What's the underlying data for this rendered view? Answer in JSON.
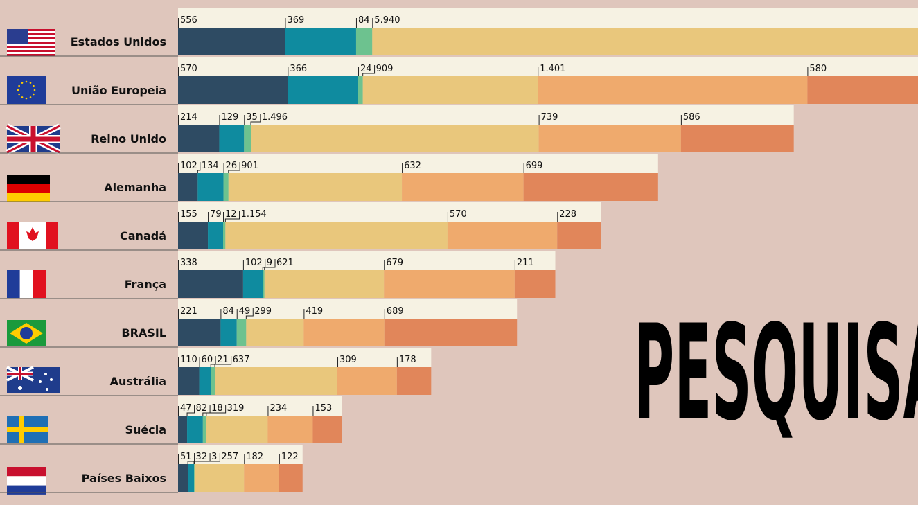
{
  "chart_data": {
    "type": "bar",
    "orientation": "horizontal",
    "stacked": true,
    "annotation": "PESQUISA",
    "categories": [
      "Estados Unidos",
      "União Europeia",
      "Reino Unido",
      "Alemanha",
      "Canadá",
      "França",
      "BRASIL",
      "Austrália",
      "Suécia",
      "Países Baixos"
    ],
    "series": [
      {
        "color": "#2e4b63",
        "values": [
          556,
          570,
          214,
          102,
          155,
          338,
          221,
          110,
          47,
          51
        ]
      },
      {
        "color": "#0f8b9f",
        "values": [
          369,
          366,
          129,
          134,
          79,
          102,
          84,
          60,
          82,
          32
        ]
      },
      {
        "color": "#6dc28f",
        "values": [
          84,
          24,
          35,
          26,
          12,
          9,
          49,
          21,
          18,
          3
        ]
      },
      {
        "color": "#e9c77c",
        "values": [
          5940,
          909,
          1496,
          901,
          1154,
          621,
          299,
          637,
          319,
          257
        ],
        "value_labels": [
          "5.940",
          "909",
          "1.496",
          "901",
          "1.154",
          "621",
          "299",
          "637",
          "319",
          "257"
        ]
      },
      {
        "color": "#efaa6d",
        "values": [
          null,
          1401,
          739,
          632,
          570,
          679,
          419,
          309,
          234,
          182
        ],
        "value_labels": [
          null,
          "1.401",
          "739",
          "632",
          "570",
          "679",
          "419",
          "309",
          "234",
          "182"
        ]
      },
      {
        "color": "#e1865a",
        "values": [
          null,
          580,
          586,
          699,
          228,
          211,
          689,
          178,
          153,
          122
        ]
      }
    ]
  }
}
